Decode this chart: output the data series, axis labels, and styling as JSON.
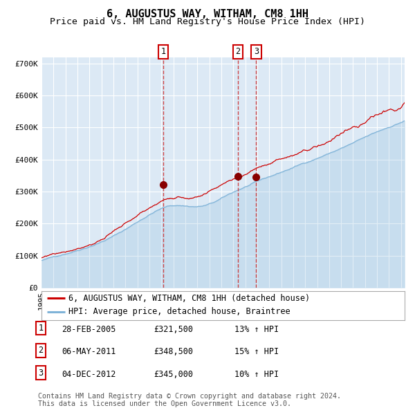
{
  "title": "6, AUGUSTUS WAY, WITHAM, CM8 1HH",
  "subtitle": "Price paid vs. HM Land Registry's House Price Index (HPI)",
  "ylim": [
    0,
    720000
  ],
  "yticks": [
    0,
    100000,
    200000,
    300000,
    400000,
    500000,
    600000,
    700000
  ],
  "ytick_labels": [
    "£0",
    "£100K",
    "£200K",
    "£300K",
    "£400K",
    "£500K",
    "£600K",
    "£700K"
  ],
  "xstart": 1995.0,
  "xend": 2025.3,
  "plot_bg_color": "#dce9f5",
  "grid_color": "#ffffff",
  "hpi_color": "#7fb3d8",
  "price_color": "#cc0000",
  "sale_marker_color": "#880000",
  "vline_color": "#cc3333",
  "transaction_labels": [
    "1",
    "2",
    "3"
  ],
  "transaction_dates": [
    2005.16,
    2011.37,
    2012.92
  ],
  "transaction_prices": [
    321500,
    348500,
    345000
  ],
  "transaction_info": [
    {
      "num": "1",
      "date": "28-FEB-2005",
      "price": "£321,500",
      "hpi": "13% ↑ HPI"
    },
    {
      "num": "2",
      "date": "06-MAY-2011",
      "price": "£348,500",
      "hpi": "15% ↑ HPI"
    },
    {
      "num": "3",
      "date": "04-DEC-2012",
      "price": "£345,000",
      "hpi": "10% ↑ HPI"
    }
  ],
  "legend_entries": [
    {
      "label": "6, AUGUSTUS WAY, WITHAM, CM8 1HH (detached house)",
      "color": "#cc0000"
    },
    {
      "label": "HPI: Average price, detached house, Braintree",
      "color": "#7fb3d8"
    }
  ],
  "footnote1": "Contains HM Land Registry data © Crown copyright and database right 2024.",
  "footnote2": "This data is licensed under the Open Government Licence v3.0.",
  "title_fontsize": 11,
  "subtitle_fontsize": 9.5,
  "tick_fontsize": 8,
  "legend_fontsize": 8.5,
  "annotation_fontsize": 8.5,
  "footnote_fontsize": 7.2
}
